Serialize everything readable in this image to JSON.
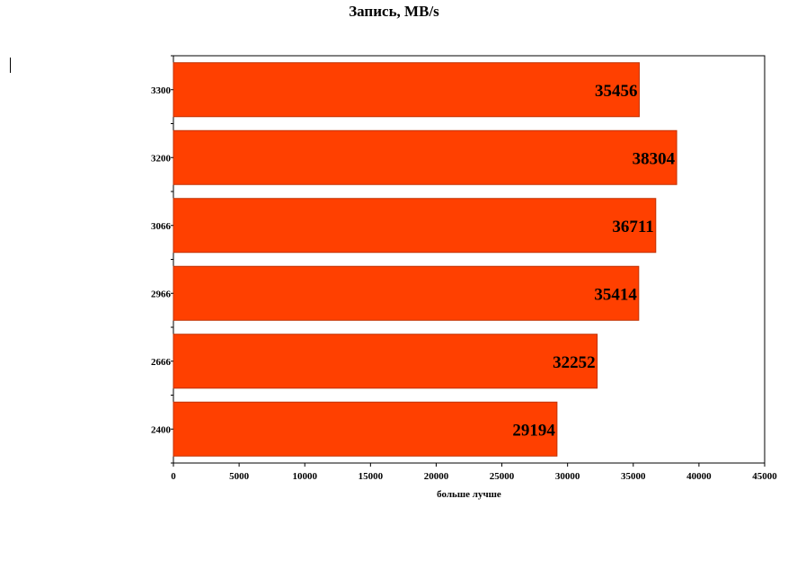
{
  "chart_data": {
    "type": "bar",
    "orientation": "horizontal",
    "title": "Запись, MB/s",
    "xlabel": "больше лучше",
    "ylabel": "",
    "categories": [
      "3300",
      "3200",
      "3066",
      "2966",
      "2666",
      "2400"
    ],
    "values": [
      35456,
      38304,
      36711,
      35414,
      32252,
      29194
    ],
    "data_labels": [
      "35456",
      "38304",
      "36711",
      "35414",
      "32252",
      "29194"
    ],
    "xlim": [
      0,
      45000
    ],
    "xticks": [
      "0",
      "5000",
      "10000",
      "15000",
      "20000",
      "25000",
      "30000",
      "35000",
      "40000",
      "45000"
    ],
    "grid": false,
    "legend": "none",
    "bar_color": "#FF4000",
    "bar_border_color": "#C03000"
  }
}
